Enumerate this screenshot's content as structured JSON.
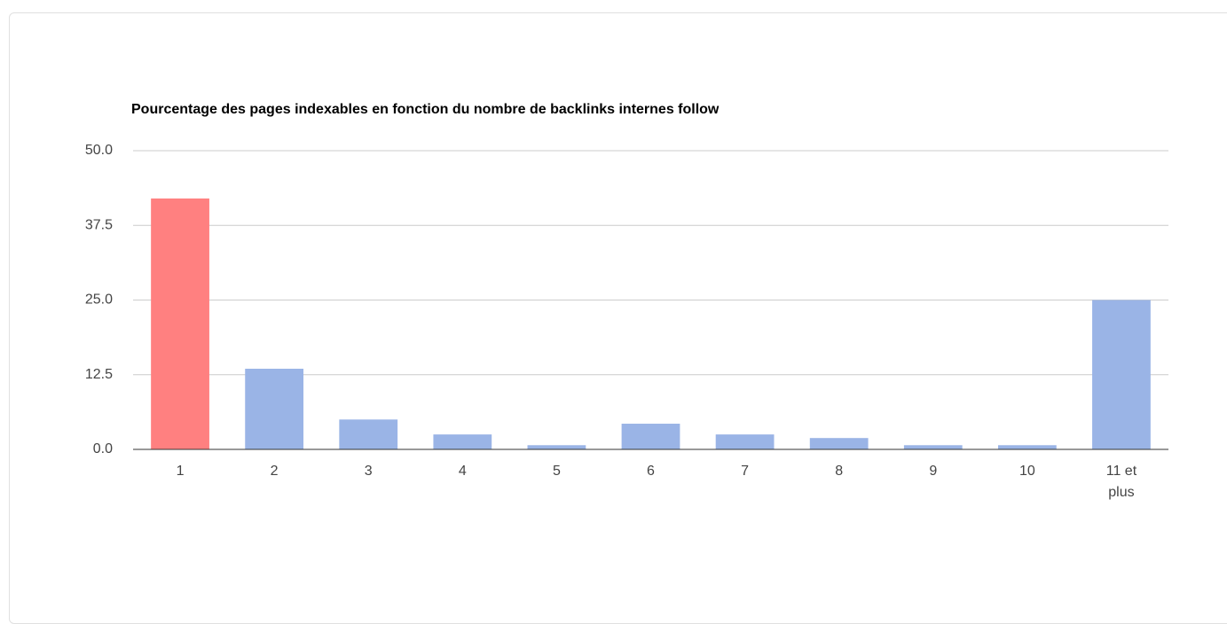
{
  "chart_data": {
    "type": "bar",
    "title": "Pourcentage des pages indexables en fonction du nombre de backlinks internes follow",
    "categories": [
      "1",
      "2",
      "3",
      "4",
      "5",
      "6",
      "7",
      "8",
      "9",
      "10",
      "11 et plus"
    ],
    "values": [
      42.0,
      13.5,
      5.0,
      2.5,
      0.7,
      4.3,
      2.5,
      1.9,
      0.7,
      0.7,
      25.0
    ],
    "colors": [
      "#ff8080",
      "#9ab4e6",
      "#9ab4e6",
      "#9ab4e6",
      "#9ab4e6",
      "#9ab4e6",
      "#9ab4e6",
      "#9ab4e6",
      "#9ab4e6",
      "#9ab4e6",
      "#9ab4e6"
    ],
    "ylim": [
      0,
      50
    ],
    "yticks": [
      {
        "value": 0,
        "label": "0.0"
      },
      12.5,
      {
        "value": 25,
        "label": "25.0"
      },
      37.5,
      {
        "value": 50,
        "label": "50.0"
      }
    ],
    "grid": true
  }
}
